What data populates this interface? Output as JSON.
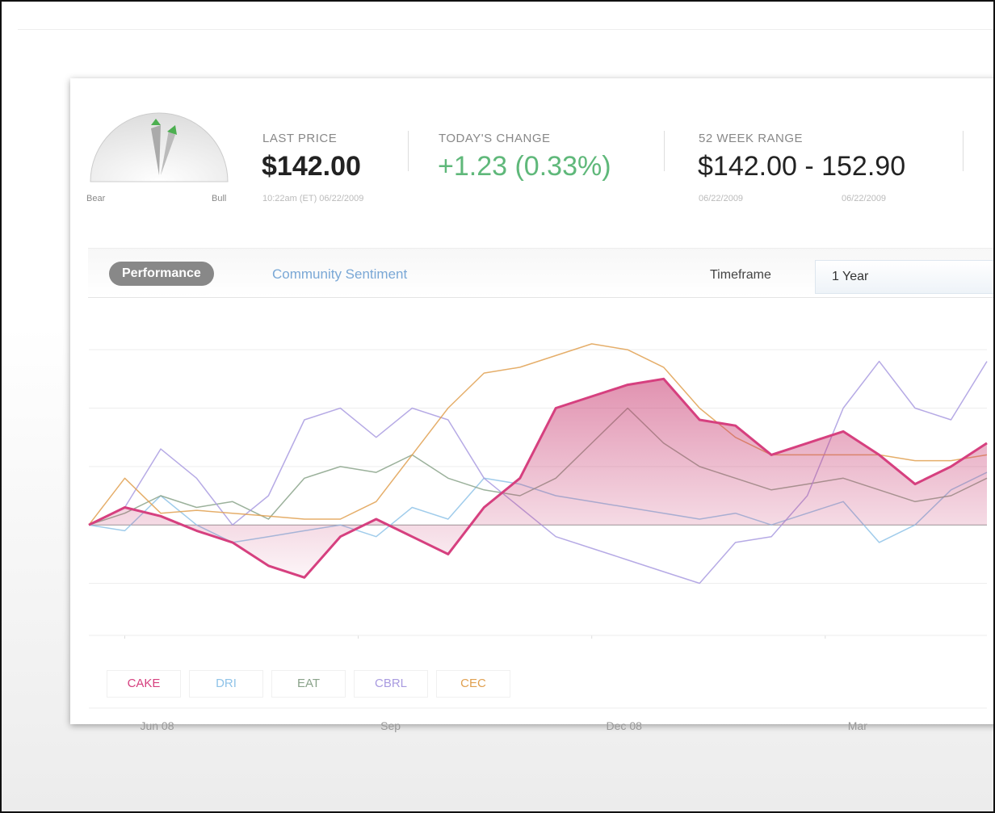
{
  "header": {
    "gauge": {
      "left": "Bear",
      "right": "Bull"
    },
    "last_price": {
      "label": "LAST PRICE",
      "value": "$142.00",
      "time": "10:22am (ET) 06/22/2009"
    },
    "todays_change": {
      "label": "TODAY'S CHANGE",
      "value": "+1.23 (0.33%)"
    },
    "week_range": {
      "label": "52 WEEK RANGE",
      "value": "$142.00 - 152.90",
      "low_date": "06/22/2009",
      "high_date": "06/22/2009"
    }
  },
  "tabs": {
    "active": "Performance",
    "other": "Community Sentiment",
    "timeframe_label": "Timeframe",
    "timeframe_value": "1 Year"
  },
  "chart_data": {
    "type": "line",
    "x": [
      -2,
      0,
      2,
      4,
      6,
      8,
      10,
      12,
      14,
      16,
      18,
      20,
      22,
      24,
      26,
      28,
      30,
      32,
      34,
      36,
      38,
      40,
      42,
      44,
      46,
      48
    ],
    "xlim": [
      -2,
      48
    ],
    "xticks": [
      {
        "value": 0,
        "label": "Jun 08"
      },
      {
        "value": 13,
        "label": "Sep"
      },
      {
        "value": 26,
        "label": "Dec 08"
      },
      {
        "value": 39,
        "label": "Mar"
      }
    ],
    "ylim": [
      -12,
      35
    ],
    "yticks": [
      -10,
      0,
      10,
      20,
      30
    ],
    "grid": true,
    "series": [
      {
        "name": "CAKE",
        "color": "#d6407f",
        "fill": true,
        "values": [
          0,
          3,
          1.5,
          -1,
          -3,
          -7,
          -9,
          -2,
          1,
          -2,
          -5,
          3,
          8,
          20,
          22,
          24,
          25,
          18,
          17,
          12,
          14,
          16,
          12,
          7,
          10,
          14
        ]
      },
      {
        "name": "DRI",
        "color": "#8fc3e8",
        "values": [
          0,
          -1,
          5,
          0,
          -3,
          -2,
          -1,
          0,
          -2,
          3,
          1,
          8,
          7,
          5,
          4,
          3,
          2,
          1,
          2,
          0,
          2,
          4,
          -3,
          0,
          6,
          9
        ]
      },
      {
        "name": "EAT",
        "color": "#8aa38a",
        "values": [
          0,
          2,
          5,
          3,
          4,
          1,
          8,
          10,
          9,
          12,
          8,
          6,
          5,
          8,
          14,
          20,
          14,
          10,
          8,
          6,
          7,
          8,
          6,
          4,
          5,
          8
        ]
      },
      {
        "name": "CBRL",
        "color": "#a99be0",
        "values": [
          0,
          3,
          13,
          8,
          0,
          5,
          18,
          20,
          15,
          20,
          18,
          8,
          3,
          -2,
          -4,
          -6,
          -8,
          -10,
          -3,
          -2,
          5,
          20,
          28,
          20,
          18,
          28
        ]
      },
      {
        "name": "CEC",
        "color": "#e0a050",
        "values": [
          0,
          8,
          2,
          2.5,
          2,
          1.5,
          1,
          1,
          4,
          12,
          20,
          26,
          27,
          29,
          31,
          30,
          27,
          20,
          15,
          12,
          12,
          12,
          12,
          11,
          11,
          12
        ]
      }
    ]
  }
}
